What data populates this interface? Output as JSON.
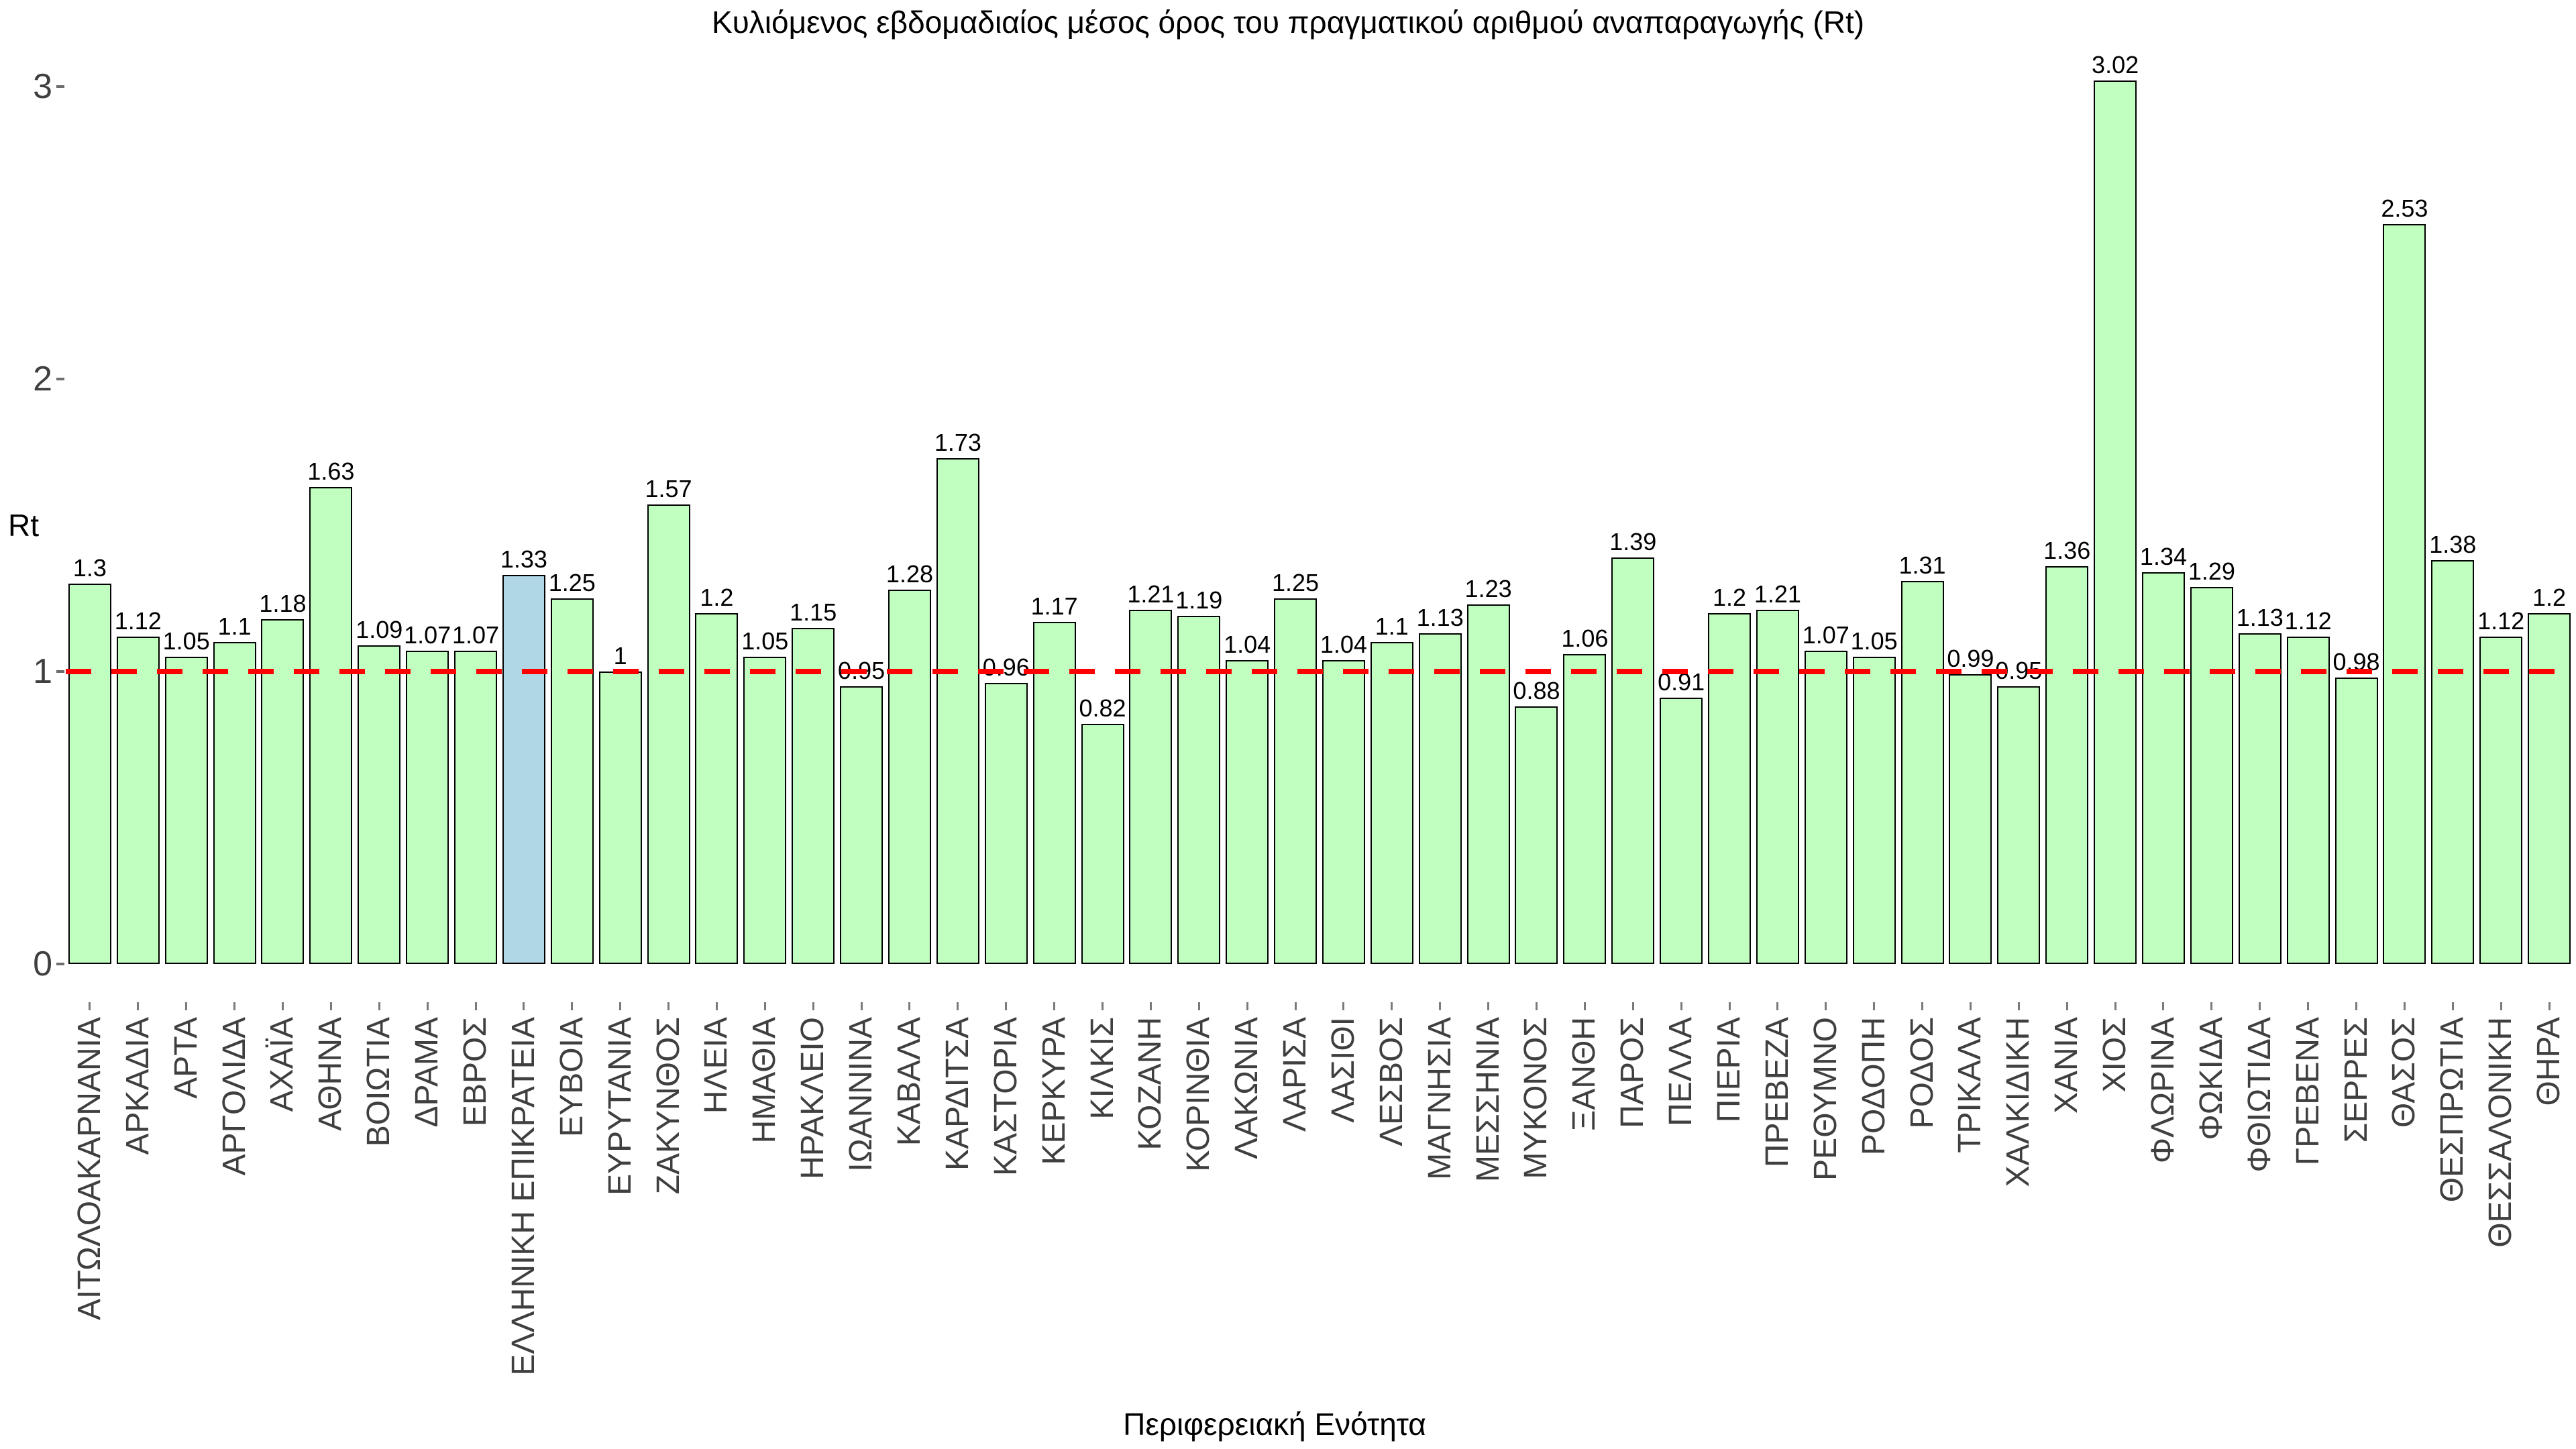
{
  "title": "Κυλιόμενος εβδομαδιαίος μέσος όρος του πραγματικού αριθμού αναπαραγωγής (Rt)",
  "y_axis": {
    "label": "Rt",
    "ticks": [
      0,
      1,
      2,
      3
    ]
  },
  "x_axis": {
    "label": "Περιφερειακή Ενότητα"
  },
  "reference_line": {
    "value": 1,
    "color": "#ff0000",
    "style": "dashed"
  },
  "colors": {
    "bar_fill": "#c1ffc1",
    "bar_border": "#000000",
    "highlight_fill": "#b0d7e5",
    "axis_text": "#3f3f3f",
    "reference_line": "#ff0000"
  },
  "highlight_category": "ΕΛΛΗΝΙΚΗ ΕΠΙΚΡΑΤΕΙΑ",
  "highlight_index": 9,
  "chart_data": {
    "type": "bar",
    "title": "Κυλιόμενος εβδομαδιαίος μέσος όρος του πραγματικού αριθμού αναπαραγωγής (Rt)",
    "xlabel": "Περιφερειακή Ενότητα",
    "ylabel": "Rt",
    "ylim": [
      0,
      3.2
    ],
    "grid": false,
    "reference_line_y": 1,
    "categories": [
      "ΑΙΤΩΛΟΑΚΑΡΝΑΝΙΑ",
      "ΑΡΚΑΔΙΑ",
      "ΑΡΤΑ",
      "ΑΡΓΟΛΙΔΑ",
      "ΑΧΑΪΑ",
      "ΑΘΗΝΑ",
      "ΒΟΙΩΤΙΑ",
      "ΔΡΑΜΑ",
      "ΕΒΡΟΣ",
      "ΕΛΛΗΝΙΚΗ ΕΠΙΚΡΑΤΕΙΑ",
      "ΕΥΒΟΙΑ",
      "ΕΥΡΥΤΑΝΙΑ",
      "ΖΑΚΥΝΘΟΣ",
      "ΗΛΕΙΑ",
      "ΗΜΑΘΙΑ",
      "ΗΡΑΚΛΕΙΟ",
      "ΙΩΑΝΝΙΝΑ",
      "ΚΑΒΑΛΑ",
      "ΚΑΡΔΙΤΣΑ",
      "ΚΑΣΤΟΡΙΑ",
      "ΚΕΡΚΥΡΑ",
      "ΚΙΛΚΙΣ",
      "ΚΟΖΑΝΗ",
      "ΚΟΡΙΝΘΙΑ",
      "ΛΑΚΩΝΙΑ",
      "ΛΑΡΙΣΑ",
      "ΛΑΣΙΘΙ",
      "ΛΕΣΒΟΣ",
      "ΜΑΓΝΗΣΙΑ",
      "ΜΕΣΣΗΝΙΑ",
      "ΜΥΚΟΝΟΣ",
      "ΞΑΝΘΗ",
      "ΠΑΡΟΣ",
      "ΠΕΛΛΑ",
      "ΠΙΕΡΙΑ",
      "ΠΡΕΒΕΖΑ",
      "ΡΕΘΥΜΝΟ",
      "ΡΟΔΟΠΗ",
      "ΡΟΔΟΣ",
      "ΤΡΙΚΑΛΑ",
      "ΧΑΛΚΙΔΙΚΗ",
      "ΧΑΝΙΑ",
      "ΧΙΟΣ",
      "ΦΛΩΡΙΝΑ",
      "ΦΩΚΙΔΑ",
      "ΦΘΙΩΤΙΔΑ",
      "ΓΡΕΒΕΝΑ",
      "ΣΕΡΡΕΣ",
      "ΘΑΣΟΣ",
      "ΘΕΣΠΡΩΤΙΑ",
      "ΘΕΣΣΑΛΟΝΙΚΗ",
      "ΘΗΡΑ"
    ],
    "values": [
      1.3,
      1.12,
      1.05,
      1.1,
      1.18,
      1.63,
      1.09,
      1.07,
      1.07,
      1.33,
      1.25,
      1,
      1.57,
      1.2,
      1.05,
      1.15,
      0.95,
      1.28,
      1.73,
      0.96,
      1.17,
      0.82,
      1.21,
      1.19,
      1.04,
      1.25,
      1.04,
      1.1,
      1.13,
      1.23,
      0.88,
      1.06,
      1.39,
      0.91,
      1.2,
      1.21,
      1.07,
      1.05,
      1.31,
      0.99,
      0.95,
      1.36,
      3.02,
      1.34,
      1.29,
      1.13,
      1.12,
      0.98,
      2.53,
      1.38,
      1.12,
      1.2
    ]
  }
}
